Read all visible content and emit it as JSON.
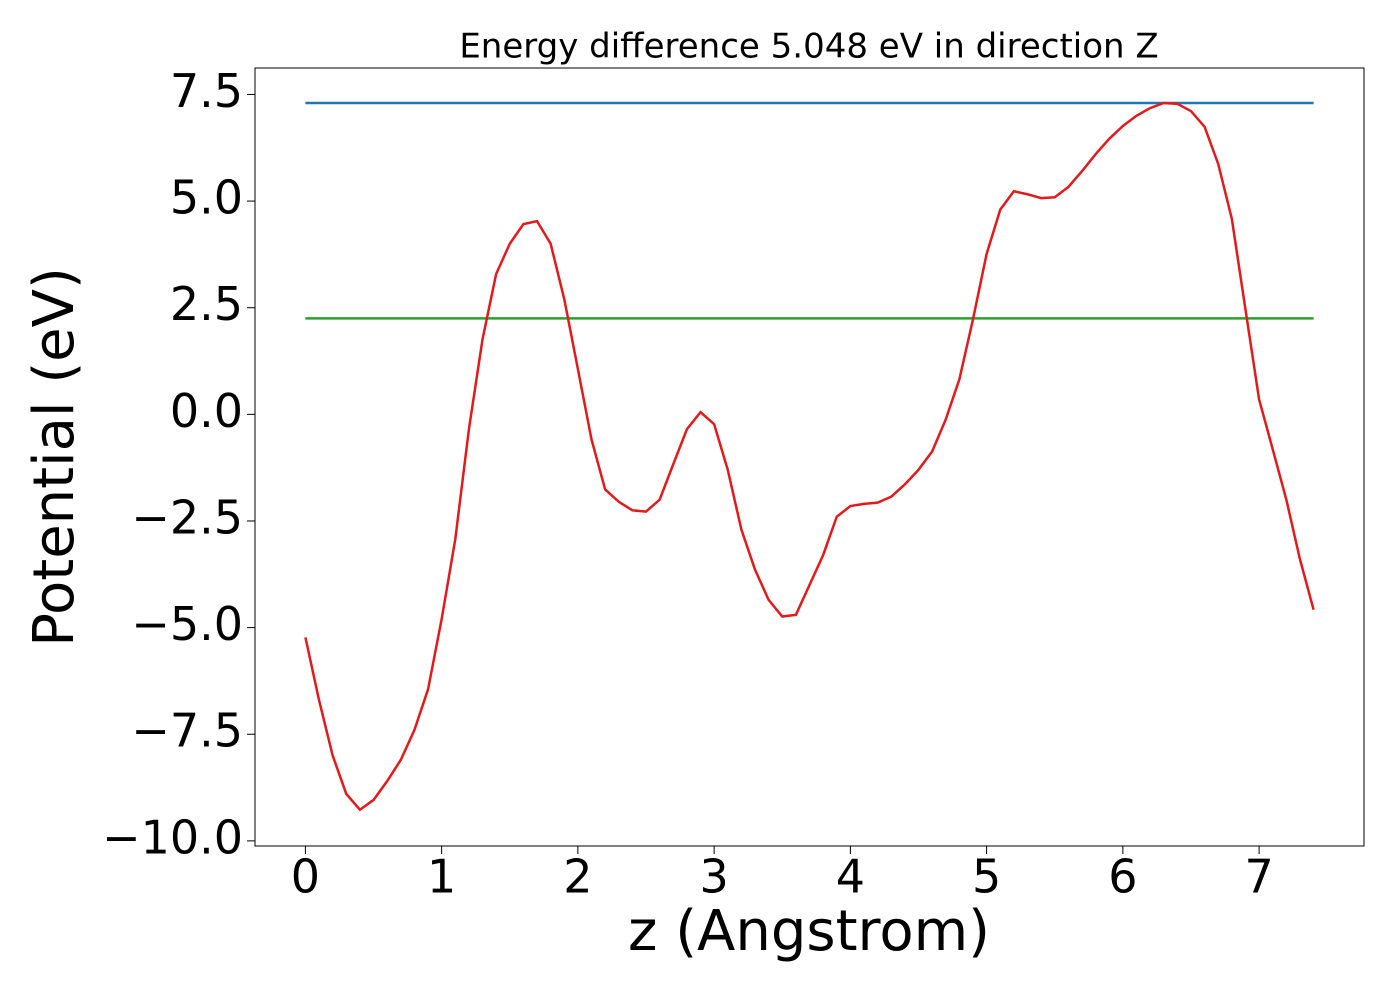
{
  "chart_data": {
    "type": "line",
    "title": "Energy difference 5.048 eV in direction Z",
    "x_label": "z (Angstrom)",
    "y_label": "Potential (eV)",
    "xlim": [
      -0.37,
      7.77
    ],
    "ylim": [
      -10.12,
      8.12
    ],
    "xticks": [
      0,
      1,
      2,
      3,
      4,
      5,
      6,
      7
    ],
    "yticks": [
      {
        "value": -10,
        "label": "−10.0"
      },
      {
        "value": -7.5,
        "label": "−7.5"
      },
      {
        "value": -5,
        "label": "−5.0"
      },
      {
        "value": -2.5,
        "label": "−2.5"
      },
      {
        "value": 0,
        "label": "0.0"
      },
      2.5,
      {
        "value": 5,
        "label": "5.0"
      },
      7.5
    ],
    "series": [
      {
        "color": "#1f77b4",
        "x": [
          0,
          7.4
        ],
        "values": [
          7.298,
          7.298
        ]
      },
      {
        "color": "#2ca02c",
        "x": [
          0,
          7.4
        ],
        "values": [
          2.25,
          2.25
        ]
      },
      {
        "color": "#e31a1c",
        "x": [
          0,
          0.1,
          0.2,
          0.3,
          0.4,
          0.5,
          0.6,
          0.7,
          0.8,
          0.9,
          1.0,
          1.1,
          1.2,
          1.3,
          1.4,
          1.5,
          1.6,
          1.7,
          1.8,
          1.9,
          2.0,
          2.1,
          2.2,
          2.3,
          2.4,
          2.5,
          2.6,
          2.7,
          2.8,
          2.9,
          3.0,
          3.1,
          3.2,
          3.3,
          3.4,
          3.5,
          3.6,
          3.7,
          3.8,
          3.9,
          4.0,
          4.1,
          4.2,
          4.3,
          4.4,
          4.5,
          4.6,
          4.7,
          4.8,
          4.9,
          5.0,
          5.1,
          5.2,
          5.3,
          5.4,
          5.5,
          5.6,
          5.7,
          5.8,
          5.9,
          6.0,
          6.1,
          6.2,
          6.3,
          6.4,
          6.5,
          6.6,
          6.7,
          6.8,
          6.9,
          7.0,
          7.1,
          7.2,
          7.3,
          7.4
        ],
        "values": [
          -5.23,
          -6.7,
          -8.0,
          -8.9,
          -9.27,
          -9.04,
          -8.6,
          -8.1,
          -7.4,
          -6.45,
          -4.8,
          -2.93,
          -0.35,
          1.76,
          3.29,
          4.0,
          4.46,
          4.53,
          4.0,
          2.7,
          1.06,
          -0.59,
          -1.76,
          -2.05,
          -2.25,
          -2.28,
          -2.0,
          -1.17,
          -0.35,
          0.05,
          -0.23,
          -1.3,
          -2.7,
          -3.64,
          -4.35,
          -4.74,
          -4.7,
          -4.0,
          -3.3,
          -2.4,
          -2.15,
          -2.1,
          -2.07,
          -1.93,
          -1.64,
          -1.3,
          -0.87,
          -0.12,
          0.82,
          2.23,
          3.76,
          4.8,
          5.23,
          5.16,
          5.07,
          5.09,
          5.33,
          5.7,
          6.1,
          6.46,
          6.76,
          7.0,
          7.18,
          7.3,
          7.28,
          7.11,
          6.74,
          5.87,
          4.58,
          2.46,
          0.35,
          -0.82,
          -2.0,
          -3.4,
          -4.58
        ]
      }
    ]
  }
}
